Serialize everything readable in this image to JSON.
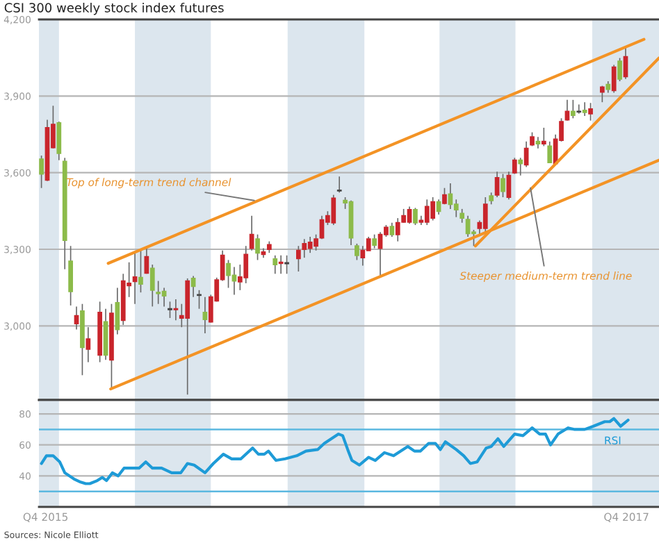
{
  "chart_data": [
    {
      "type": "candlestick",
      "title": "CSI 300 weekly stock index futures",
      "xlim": [
        "2015-12-08",
        "2017-12-20"
      ],
      "ylim": [
        2710,
        4200
      ],
      "yticks": [
        {
          "value": 3000,
          "label": "3,000"
        },
        {
          "value": 3300,
          "label": "3,300"
        },
        {
          "value": 3600,
          "label": "3,600"
        },
        {
          "value": 3900,
          "label": "3,900"
        },
        {
          "value": 4200,
          "label": "4,200"
        }
      ],
      "grid": "y",
      "tick_labels": "y",
      "bands": [
        {
          "axis": "x",
          "from": "2015-12-08",
          "to": "2016-01-01",
          "color": "#dce6ee"
        },
        {
          "axis": "x",
          "from": "2016-04-01",
          "to": "2016-07-01",
          "color": "#dce6ee"
        },
        {
          "axis": "x",
          "from": "2016-10-01",
          "to": "2017-01-01",
          "color": "#dce6ee"
        },
        {
          "axis": "x",
          "from": "2017-04-01",
          "to": "2017-07-01",
          "color": "#dce6ee"
        },
        {
          "axis": "x",
          "from": "2017-10-01",
          "to": "2017-12-20",
          "color": "#dce6ee"
        }
      ],
      "annotations": [
        {
          "text": "Top of long-term trend channel",
          "x": "2016-08-22",
          "y": 3491
        },
        {
          "text": "Steeper medium-term trend line",
          "x": "2017-07-19",
          "y": 3540
        }
      ],
      "series": [
        {
          "type": "candlestick",
          "x": [
            "2015-12-11",
            "2015-12-18",
            "2015-12-25",
            "2016-01-01",
            "2016-01-08",
            "2016-01-15",
            "2016-01-22",
            "2016-01-29",
            "2016-02-05",
            "2016-02-19",
            "2016-02-26",
            "2016-03-04",
            "2016-03-11",
            "2016-03-18",
            "2016-03-25",
            "2016-04-01",
            "2016-04-08",
            "2016-04-15",
            "2016-04-22",
            "2016-04-29",
            "2016-05-06",
            "2016-05-13",
            "2016-05-20",
            "2016-05-27",
            "2016-06-03",
            "2016-06-10",
            "2016-06-17",
            "2016-06-24",
            "2016-07-01",
            "2016-07-08",
            "2016-07-15",
            "2016-07-22",
            "2016-07-29",
            "2016-08-05",
            "2016-08-12",
            "2016-08-19",
            "2016-08-26",
            "2016-09-02",
            "2016-09-09",
            "2016-09-16",
            "2016-09-23",
            "2016-09-30",
            "2016-10-14",
            "2016-10-21",
            "2016-10-28",
            "2016-11-04",
            "2016-11-11",
            "2016-11-18",
            "2016-11-25",
            "2016-12-02",
            "2016-12-09",
            "2016-12-16",
            "2016-12-23",
            "2016-12-30",
            "2017-01-06",
            "2017-01-13",
            "2017-01-20",
            "2017-01-27",
            "2017-02-03",
            "2017-02-10",
            "2017-02-17",
            "2017-02-24",
            "2017-03-03",
            "2017-03-10",
            "2017-03-17",
            "2017-03-24",
            "2017-03-31",
            "2017-04-07",
            "2017-04-14",
            "2017-04-21",
            "2017-04-28",
            "2017-05-05",
            "2017-05-12",
            "2017-05-19",
            "2017-05-26",
            "2017-06-02",
            "2017-06-09",
            "2017-06-16",
            "2017-06-23",
            "2017-06-30",
            "2017-07-07",
            "2017-07-14",
            "2017-07-21",
            "2017-07-28",
            "2017-08-04",
            "2017-08-11",
            "2017-08-18",
            "2017-08-25",
            "2017-09-01",
            "2017-09-08",
            "2017-09-15",
            "2017-09-22",
            "2017-09-29",
            "2017-10-13",
            "2017-10-20",
            "2017-10-27",
            "2017-11-03",
            "2017-11-10"
          ],
          "ohlc": [
            [
              3653,
              3667,
              3540,
              3595
            ],
            [
              3571,
              3807,
              3567,
              3776
            ],
            [
              3698,
              3862,
              3695,
              3789
            ],
            [
              3795,
              3800,
              3649,
              3676
            ],
            [
              3644,
              3658,
              3222,
              3335
            ],
            [
              3253,
              3313,
              3080,
              3135
            ],
            [
              3009,
              3076,
              2986,
              3040
            ],
            [
              3058,
              3086,
              2807,
              2916
            ],
            [
              2909,
              2995,
              2858,
              2949
            ],
            [
              2886,
              3095,
              2858,
              3053
            ],
            [
              3016,
              3067,
              2867,
              2886
            ],
            [
              2867,
              3086,
              2758,
              3049
            ],
            [
              3091,
              3149,
              2967,
              2986
            ],
            [
              3022,
              3204,
              3004,
              3176
            ],
            [
              3158,
              3249,
              3113,
              3167
            ],
            [
              3174,
              3286,
              3086,
              3191
            ],
            [
              3189,
              3295,
              3131,
              3164
            ],
            [
              3207,
              3304,
              3204,
              3271
            ],
            [
              3225,
              3240,
              3076,
              3140
            ],
            [
              3131,
              3176,
              3086,
              3127
            ],
            [
              3135,
              3149,
              3076,
              3118
            ],
            [
              3064,
              3095,
              3031,
              3067
            ],
            [
              3064,
              3104,
              3022,
              3067
            ],
            [
              3031,
              3086,
              2995,
              3040
            ],
            [
              3031,
              3186,
              2731,
              3176
            ],
            [
              3186,
              3195,
              3113,
              3155
            ],
            [
              3120,
              3140,
              3067,
              3122
            ],
            [
              3053,
              3113,
              2971,
              3025
            ],
            [
              3016,
              3122,
              3013,
              3113
            ],
            [
              3098,
              3189,
              3095,
              3180
            ],
            [
              3182,
              3295,
              3176,
              3276
            ],
            [
              3244,
              3258,
              3149,
              3198
            ],
            [
              3198,
              3231,
              3122,
              3176
            ],
            [
              3173,
              3240,
              3140,
              3191
            ],
            [
              3189,
              3313,
              3167,
              3280
            ],
            [
              3304,
              3431,
              3295,
              3358
            ],
            [
              3340,
              3358,
              3258,
              3286
            ],
            [
              3280,
              3304,
              3267,
              3289
            ],
            [
              3300,
              3331,
              3286,
              3318
            ],
            [
              3262,
              3276,
              3204,
              3240
            ],
            [
              3245,
              3276,
              3204,
              3249
            ],
            [
              3244,
              3276,
              3204,
              3247
            ],
            [
              3264,
              3313,
              3213,
              3295
            ],
            [
              3300,
              3340,
              3267,
              3322
            ],
            [
              3304,
              3349,
              3286,
              3327
            ],
            [
              3313,
              3358,
              3295,
              3340
            ],
            [
              3345,
              3431,
              3340,
              3415
            ],
            [
              3407,
              3449,
              3395,
              3431
            ],
            [
              3404,
              3513,
              3395,
              3500
            ],
            [
              3529,
              3585,
              3522,
              3531
            ],
            [
              3491,
              3504,
              3458,
              3482
            ],
            [
              3486,
              3491,
              3316,
              3345
            ],
            [
              3313,
              3322,
              3258,
              3276
            ],
            [
              3267,
              3313,
              3236,
              3295
            ],
            [
              3295,
              3349,
              3295,
              3340
            ],
            [
              3340,
              3358,
              3304,
              3316
            ],
            [
              3304,
              3367,
              3195,
              3358
            ],
            [
              3358,
              3395,
              3349,
              3386
            ],
            [
              3389,
              3404,
              3349,
              3358
            ],
            [
              3358,
              3422,
              3331,
              3404
            ],
            [
              3407,
              3458,
              3404,
              3431
            ],
            [
              3407,
              3467,
              3400,
              3455
            ],
            [
              3455,
              3462,
              3395,
              3404
            ],
            [
              3407,
              3431,
              3395,
              3413
            ],
            [
              3407,
              3495,
              3395,
              3467
            ],
            [
              3422,
              3504,
              3413,
              3486
            ],
            [
              3486,
              3495,
              3436,
              3449
            ],
            [
              3480,
              3540,
              3476,
              3513
            ],
            [
              3516,
              3558,
              3458,
              3476
            ],
            [
              3476,
              3495,
              3426,
              3455
            ],
            [
              3440,
              3458,
              3404,
              3422
            ],
            [
              3416,
              3431,
              3349,
              3362
            ],
            [
              3367,
              3376,
              3313,
              3362
            ],
            [
              3382,
              3413,
              3358,
              3404
            ],
            [
              3382,
              3504,
              3367,
              3476
            ],
            [
              3509,
              3522,
              3476,
              3491
            ],
            [
              3513,
              3604,
              3504,
              3580
            ],
            [
              3576,
              3595,
              3504,
              3527
            ],
            [
              3504,
              3604,
              3495,
              3589
            ],
            [
              3600,
              3658,
              3595,
              3649
            ],
            [
              3649,
              3658,
              3589,
              3636
            ],
            [
              3631,
              3722,
              3622,
              3695
            ],
            [
              3709,
              3758,
              3704,
              3740
            ],
            [
              3722,
              3740,
              3695,
              3713
            ],
            [
              3713,
              3776,
              3704,
              3722
            ],
            [
              3704,
              3722,
              3640,
              3640
            ],
            [
              3636,
              3749,
              3631,
              3731
            ],
            [
              3727,
              3813,
              3722,
              3800
            ],
            [
              3807,
              3885,
              3804,
              3840
            ],
            [
              3840,
              3885,
              3813,
              3825
            ],
            [
              3838,
              3867,
              3831,
              3840
            ],
            [
              3844,
              3876,
              3822,
              3836
            ],
            [
              3831,
              3873,
              3804,
              3849
            ],
            [
              3916,
              3940,
              3876,
              3935
            ],
            [
              3945,
              3958,
              3913,
              3927
            ],
            [
              3922,
              4022,
              3913,
              4013
            ],
            [
              4036,
              4049,
              3958,
              3967
            ],
            [
              3976,
              4095,
              3967,
              4054
            ]
          ],
          "colors": [
            "#8cbb4a",
            "#c9252c",
            "#c9252c",
            "#8cbb4a",
            "#8cbb4a",
            "#8cbb4a",
            "#c9252c",
            "#8cbb4a",
            "#c9252c",
            "#c9252c",
            "#8cbb4a",
            "#c9252c",
            "#8cbb4a",
            "#c9252c",
            "#c9252c",
            "#c9252c",
            "#8cbb4a",
            "#c9252c",
            "#8cbb4a",
            "#8cbb4a",
            "#8cbb4a",
            "#444444",
            "#c9252c",
            "#c9252c",
            "#c9252c",
            "#8cbb4a",
            "#444444",
            "#8cbb4a",
            "#c9252c",
            "#c9252c",
            "#c9252c",
            "#8cbb4a",
            "#8cbb4a",
            "#c9252c",
            "#c9252c",
            "#c9252c",
            "#8cbb4a",
            "#c9252c",
            "#c9252c",
            "#8cbb4a",
            "#c9252c",
            "#444444",
            "#c9252c",
            "#c9252c",
            "#c9252c",
            "#c9252c",
            "#c9252c",
            "#c9252c",
            "#c9252c",
            "#444444",
            "#8cbb4a",
            "#8cbb4a",
            "#8cbb4a",
            "#c9252c",
            "#c9252c",
            "#8cbb4a",
            "#c9252c",
            "#c9252c",
            "#8cbb4a",
            "#c9252c",
            "#c9252c",
            "#c9252c",
            "#8cbb4a",
            "#c9252c",
            "#c9252c",
            "#c9252c",
            "#8cbb4a",
            "#c9252c",
            "#8cbb4a",
            "#8cbb4a",
            "#8cbb4a",
            "#8cbb4a",
            "#8cbb4a",
            "#c9252c",
            "#c9252c",
            "#8cbb4a",
            "#c9252c",
            "#8cbb4a",
            "#c9252c",
            "#c9252c",
            "#8cbb4a",
            "#c9252c",
            "#c9252c",
            "#8cbb4a",
            "#c9252c",
            "#8cbb4a",
            "#c9252c",
            "#c9252c",
            "#c9252c",
            "#8cbb4a",
            "#444444",
            "#8cbb4a",
            "#c9252c",
            "#c9252c",
            "#8cbb4a",
            "#c9252c",
            "#8cbb4a",
            "#c9252c"
          ]
        },
        {
          "type": "line",
          "color": "#f39325",
          "x": [
            "2016-02-29",
            "2017-12-02"
          ],
          "values": [
            3245,
            4122
          ]
        },
        {
          "type": "line",
          "color": "#f39325",
          "x": [
            "2016-03-03",
            "2017-12-20"
          ],
          "values": [
            2753,
            3649
          ]
        },
        {
          "type": "line",
          "color": "#f39325",
          "x": [
            "2017-05-14",
            "2017-12-20"
          ],
          "values": [
            3313,
            4049
          ]
        }
      ]
    },
    {
      "type": "line",
      "xlim": [
        "2015-12-08",
        "2017-12-20"
      ],
      "ylim": [
        20,
        89
      ],
      "xticks": [
        {
          "value": "2015-12-16",
          "label": "Q4 2015"
        },
        {
          "value": "2017-11-11",
          "label": "Q4 2017"
        }
      ],
      "yticks": [
        40,
        60,
        80
      ],
      "grid": "y",
      "bands": [
        {
          "axis": "x",
          "from": "2015-12-08",
          "to": "2016-01-01",
          "color": "#dce6ee"
        },
        {
          "axis": "x",
          "from": "2016-04-01",
          "to": "2016-07-01",
          "color": "#dce6ee"
        },
        {
          "axis": "x",
          "from": "2016-10-01",
          "to": "2017-01-01",
          "color": "#dce6ee"
        },
        {
          "axis": "x",
          "from": "2017-04-01",
          "to": "2017-07-01",
          "color": "#dce6ee"
        },
        {
          "axis": "x",
          "from": "2017-10-01",
          "to": "2017-12-20",
          "color": "#dce6ee"
        }
      ],
      "ref_lines": [
        {
          "axis": "y",
          "value": 70,
          "color": "#5bb8e0"
        },
        {
          "axis": "y",
          "value": 30,
          "color": "#5bb8e0"
        }
      ],
      "annotations": [
        "Sources: Nicole Elliott"
      ],
      "series": [
        {
          "name": "RSI",
          "color": "#1e9bd7",
          "x": [
            "2015-12-11",
            "2015-12-17",
            "2015-12-25",
            "2016-01-02",
            "2016-01-08",
            "2016-01-19",
            "2016-01-27",
            "2016-02-02",
            "2016-02-07",
            "2016-02-16",
            "2016-02-22",
            "2016-02-27",
            "2016-03-05",
            "2016-03-12",
            "2016-03-19",
            "2016-04-06",
            "2016-04-14",
            "2016-04-22",
            "2016-05-03",
            "2016-05-15",
            "2016-05-26",
            "2016-06-03",
            "2016-06-11",
            "2016-06-24",
            "2016-07-04",
            "2016-07-16",
            "2016-07-26",
            "2016-08-06",
            "2016-08-20",
            "2016-08-27",
            "2016-09-03",
            "2016-09-08",
            "2016-09-17",
            "2016-09-28",
            "2016-10-12",
            "2016-10-23",
            "2016-11-06",
            "2016-11-14",
            "2016-12-01",
            "2016-12-06",
            "2016-12-12",
            "2016-12-17",
            "2016-12-26",
            "2017-01-06",
            "2017-01-14",
            "2017-01-25",
            "2017-02-05",
            "2017-02-22",
            "2017-03-02",
            "2017-03-09",
            "2017-03-19",
            "2017-03-27",
            "2017-04-02",
            "2017-04-08",
            "2017-04-21",
            "2017-04-30",
            "2017-05-08",
            "2017-05-16",
            "2017-05-27",
            "2017-06-02",
            "2017-06-10",
            "2017-06-17",
            "2017-06-30",
            "2017-07-10",
            "2017-07-21",
            "2017-07-30",
            "2017-08-06",
            "2017-08-12",
            "2017-08-21",
            "2017-09-02",
            "2017-09-10",
            "2017-09-22",
            "2017-10-02",
            "2017-10-16",
            "2017-10-22",
            "2017-10-27",
            "2017-11-04",
            "2017-11-13"
          ],
          "values": [
            48,
            53,
            53,
            49,
            42,
            38,
            36,
            35,
            35,
            37,
            39,
            37,
            42,
            40,
            45,
            45,
            49,
            45,
            45,
            42,
            42,
            48,
            47,
            42,
            48,
            54,
            51,
            51,
            58,
            54,
            54,
            56,
            50,
            51,
            53,
            56,
            57,
            61,
            67,
            66,
            57,
            50,
            47,
            52,
            50,
            55,
            53,
            59,
            56,
            56,
            61,
            61,
            57,
            62,
            57,
            53,
            48,
            49,
            58,
            59,
            64,
            59,
            67,
            66,
            71,
            67,
            67,
            60,
            67,
            71,
            70,
            70,
            72,
            75,
            75,
            77,
            72,
            76
          ]
        }
      ]
    }
  ]
}
